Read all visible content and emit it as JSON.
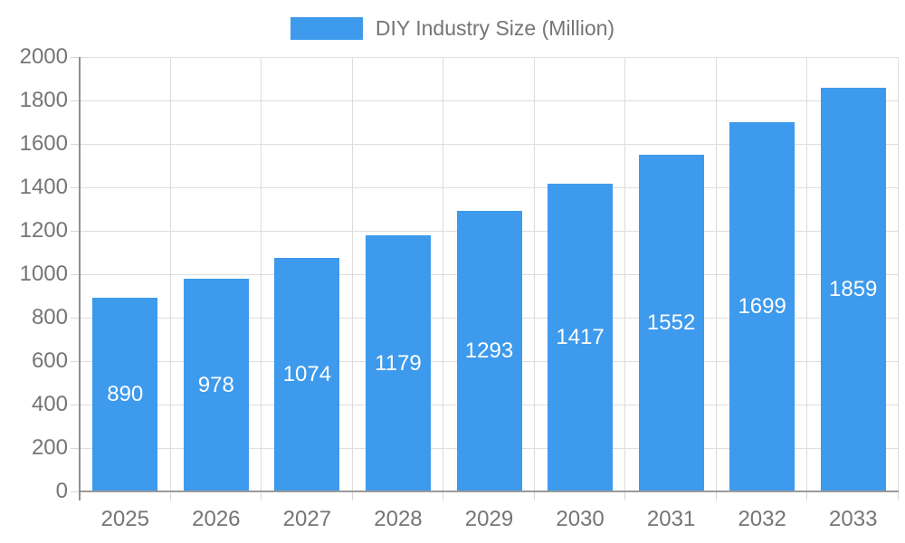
{
  "chart_data": {
    "type": "bar",
    "title": "DIY Industry Size (Million)",
    "categories": [
      "2025",
      "2026",
      "2027",
      "2028",
      "2029",
      "2030",
      "2031",
      "2032",
      "2033"
    ],
    "values": [
      890,
      978,
      1074,
      1179,
      1293,
      1417,
      1552,
      1699,
      1859
    ],
    "xlabel": "",
    "ylabel": "",
    "ylim": [
      0,
      2000
    ],
    "ytick_step": 200,
    "grid": true,
    "legend_position": "top-center",
    "value_labels": "centered-inside-bars"
  },
  "legend": {
    "label": "DIY Industry Size (Million)"
  },
  "colors": {
    "bar": "#3D9AEC",
    "label_text": "#757575",
    "gridline": "#DDDDDD",
    "tick": "#D6D6D6",
    "axis": "#999999",
    "value_text": "#FFFFFF",
    "background": "#FFFFFF"
  }
}
